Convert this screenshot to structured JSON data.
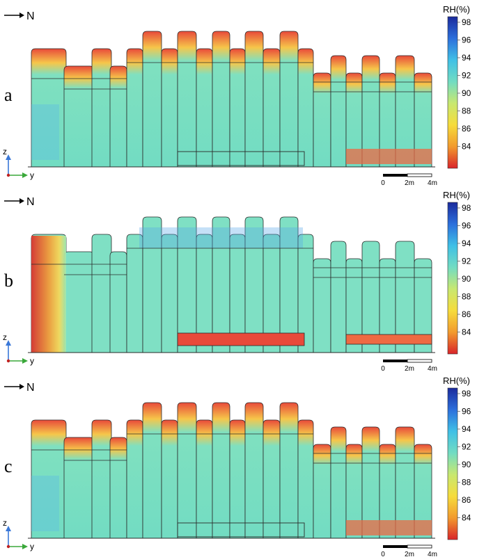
{
  "panels": [
    {
      "label": "a",
      "north": "N",
      "axis_z": "z",
      "axis_y": "y"
    },
    {
      "label": "b",
      "north": "N",
      "axis_z": "z",
      "axis_y": "y"
    },
    {
      "label": "c",
      "north": "N",
      "axis_z": "z",
      "axis_y": "y"
    }
  ],
  "colorbar": {
    "title": "RH(%)",
    "ticks": [
      "98",
      "96",
      "94",
      "92",
      "90",
      "88",
      "86",
      "84"
    ],
    "colors": [
      "#1a2a9c",
      "#2c6fdc",
      "#3fc0e6",
      "#72dcc2",
      "#c8e870",
      "#f6dc3c",
      "#f29a2e",
      "#d9242a"
    ]
  },
  "scalebar": {
    "ticks": [
      "0",
      "2m",
      "4m"
    ]
  }
}
